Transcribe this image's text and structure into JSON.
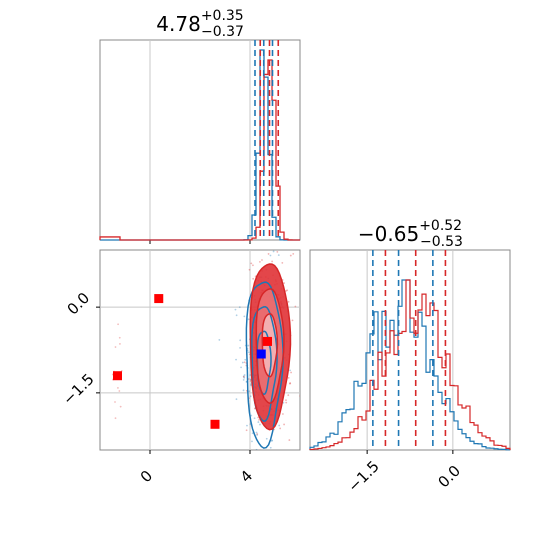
{
  "colors": {
    "blue": "#1f77b4",
    "red": "#d62728",
    "red_fill_outer": "#f4b7b8",
    "red_fill_mid": "#ea7073",
    "red_fill_inner": "#e03236",
    "marker_red": "#ff0000",
    "marker_blue": "#0000ff"
  },
  "chart_data": [
    {
      "type": "histogram",
      "panel": "x-marginal",
      "title": {
        "main": "4.78",
        "plus": "+0.35",
        "minus": "−0.37"
      },
      "xlim": [
        -2.0,
        6.0
      ],
      "xticks": [
        0,
        4
      ],
      "grid": true,
      "series": [
        {
          "name": "",
          "color": "#1f77b4",
          "center": 4.55,
          "sigma": 0.2,
          "quantiles": [
            4.2,
            4.55,
            4.9
          ]
        },
        {
          "name": "",
          "color": "#d62728",
          "center": 4.78,
          "sigma": 0.2,
          "quantiles": [
            4.41,
            4.78,
            5.13
          ]
        }
      ]
    },
    {
      "type": "histogram",
      "panel": "y-marginal",
      "title": {
        "main": "−0.65",
        "plus": "+0.52",
        "minus": "−0.53"
      },
      "xlim": [
        -2.5,
        1.0
      ],
      "xticks": [
        -1.5,
        0.0
      ],
      "xtick_labels": [
        "−1.5",
        "0.0"
      ],
      "grid": true,
      "series": [
        {
          "name": "",
          "color": "#1f77b4",
          "center": -0.95,
          "sigma": 0.55,
          "quantiles": [
            -1.4,
            -0.95,
            -0.35
          ]
        },
        {
          "name": "",
          "color": "#d62728",
          "center": -0.65,
          "sigma": 0.55,
          "quantiles": [
            -1.18,
            -0.65,
            -0.13
          ]
        }
      ]
    },
    {
      "type": "scatter",
      "panel": "joint",
      "xlim": [
        -2.0,
        6.0
      ],
      "ylim": [
        -2.5,
        1.0
      ],
      "xticks": [
        0,
        4
      ],
      "yticks": [
        0.0,
        -1.5
      ],
      "ytick_labels": [
        "0.0",
        "−1.5"
      ],
      "grid": true,
      "contours": [
        {
          "color": "#1f77b4",
          "center": [
            4.55,
            -0.95
          ],
          "spreads": [
            [
              0.3,
              0.55
            ],
            [
              0.55,
              1.0
            ],
            [
              0.8,
              1.45
            ]
          ]
        },
        {
          "color": "#d62728",
          "center": [
            4.78,
            -0.65
          ],
          "spreads": [
            [
              0.3,
              0.55
            ],
            [
              0.55,
              1.0
            ],
            [
              0.8,
              1.45
            ]
          ]
        }
      ],
      "markers": [
        {
          "x": 0.35,
          "y": 0.15,
          "color": "#ff0000"
        },
        {
          "x": -1.3,
          "y": -1.2,
          "color": "#ff0000"
        },
        {
          "x": 2.6,
          "y": -2.05,
          "color": "#ff0000"
        },
        {
          "x": 4.7,
          "y": -0.6,
          "color": "#ff0000"
        },
        {
          "x": 4.45,
          "y": -0.82,
          "color": "#0000ff"
        }
      ]
    }
  ]
}
